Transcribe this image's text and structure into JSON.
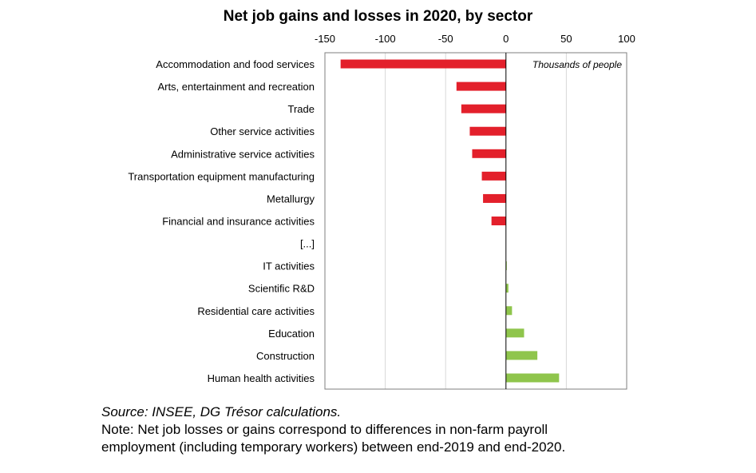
{
  "chart_data": {
    "type": "bar",
    "orientation": "horizontal",
    "title": "Net job gains and losses in 2020, by sector",
    "unit_label": "Thousands of people",
    "xlim": [
      -150,
      100
    ],
    "x_ticks": [
      -150,
      -100,
      -50,
      0,
      50,
      100
    ],
    "x_tick_labels": [
      "-150",
      "-100",
      "-50",
      "0",
      "50",
      "100"
    ],
    "grid": "vertical",
    "categories": [
      "Accommodation and food services",
      "Arts, entertainment and recreation",
      "Trade",
      "Other service activities",
      "Administrative service activities",
      "Transportation equipment manufacturing",
      "Metallurgy",
      "Financial and insurance activities",
      "[...]",
      "IT activities",
      "Scientific R&D",
      "Residential care activities",
      "Education",
      "Construction",
      "Human health activities"
    ],
    "values": [
      -137,
      -41,
      -37,
      -30,
      -28,
      -20,
      -19,
      -12,
      null,
      0.5,
      2,
      5,
      15,
      26,
      44
    ],
    "colors": {
      "negative": "#e3202b",
      "positive": "#8fc54c",
      "grid": "#d9d9d9",
      "axis": "#000000"
    }
  },
  "footnotes": {
    "source": "Source: INSEE, DG Trésor calculations.",
    "note_line_1": "Note: Net job losses or gains correspond to differences in non-farm payroll",
    "note_line_2": "employment (including temporary workers) between end-2019 and end-2020."
  }
}
